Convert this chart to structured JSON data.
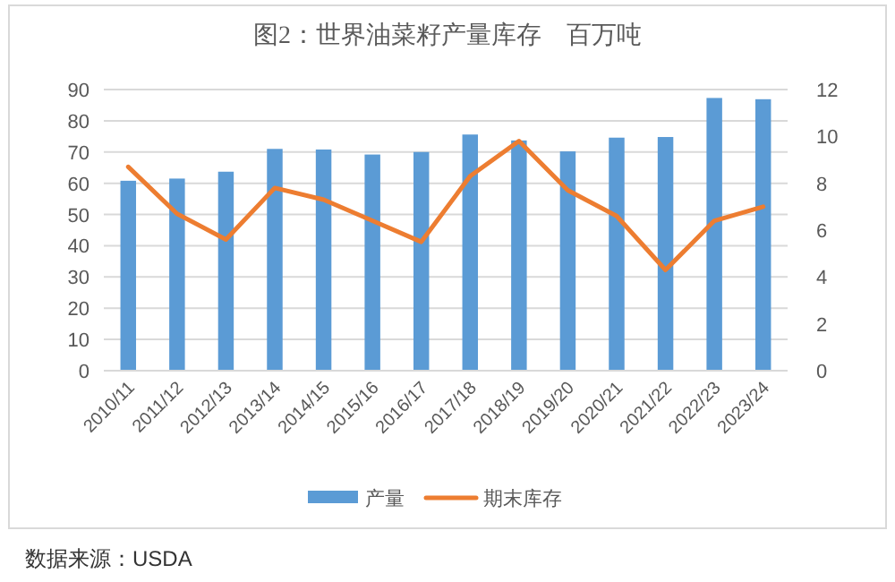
{
  "chart_data": {
    "type": "bar",
    "title": "图2：世界油菜籽产量库存　百万吨",
    "categories": [
      "2010/11",
      "2011/12",
      "2012/13",
      "2013/14",
      "2014/15",
      "2015/16",
      "2016/17",
      "2017/18",
      "2018/19",
      "2019/20",
      "2020/21",
      "2021/22",
      "2022/23",
      "2023/24"
    ],
    "series": [
      {
        "name": "产量",
        "color": "#5b9bd5",
        "values": [
          60.8,
          61.5,
          63.7,
          71,
          70.8,
          69.2,
          70,
          75.6,
          73.7,
          70.2,
          74.6,
          74.8,
          87.3,
          86.9
        ]
      },
      {
        "name": "期末库存",
        "type": "line",
        "axis": "y2",
        "color": "#ed7d31",
        "values": [
          8.7,
          6.7,
          5.6,
          7.8,
          7.3,
          6.4,
          5.5,
          8.3,
          9.8,
          7.7,
          6.6,
          4.3,
          6.4,
          7.0
        ]
      }
    ],
    "ylim": [
      0,
      90
    ],
    "yticks": [
      0,
      10,
      20,
      30,
      40,
      50,
      60,
      70,
      80,
      90
    ],
    "y2lim": [
      0,
      12
    ],
    "y2ticks": [
      0,
      2,
      4,
      6,
      8,
      10,
      12
    ],
    "grid": "y",
    "legend": "bottom",
    "annotations": [
      "数据来源：USDA"
    ]
  }
}
